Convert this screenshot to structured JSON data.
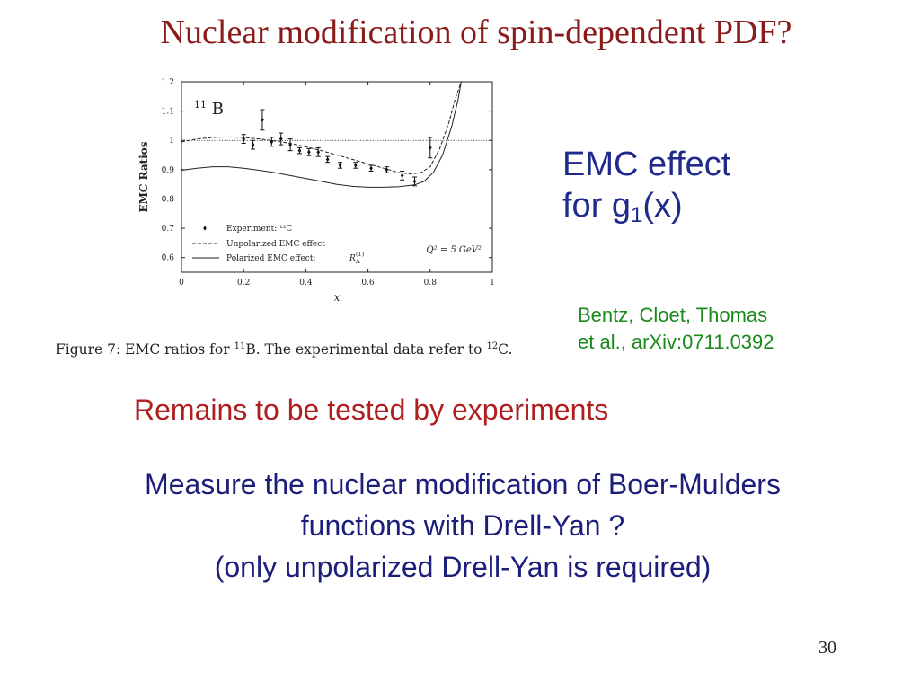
{
  "slide": {
    "title": "Nuclear modification of spin-dependent PDF?",
    "emc_line1": "EMC effect",
    "emc_line2_prefix": "for g",
    "emc_line2_sub": "1",
    "emc_line2_suffix": "(x)",
    "citation_line1": "Bentz, Cloet, Thomas",
    "citation_line2": "et al., arXiv:0711.0392",
    "remains": "Remains to be tested by experiments",
    "measure_line1": "Measure the nuclear modification of Boer-Mulders",
    "measure_line2": "functions with Drell-Yan ?",
    "measure_line3": "(only unpolarized Drell-Yan is required)",
    "page_number": "30"
  },
  "figure": {
    "caption_prefix": "Figure 7:  EMC ratios for ",
    "caption_b_mass": "11",
    "caption_mid": "B. The experimental data refer to ",
    "caption_c_mass": "12",
    "caption_suffix": "C."
  },
  "chart_data": {
    "type": "line",
    "nucleus_mass": "11",
    "nucleus_symbol": "B",
    "xlabel": "x",
    "ylabel": "EMC Ratios",
    "xlim": [
      0,
      1
    ],
    "ylim": [
      0.55,
      1.2
    ],
    "x_ticks": [
      "0",
      "0.2",
      "0.4",
      "0.6",
      "0.8",
      "1"
    ],
    "y_ticks": [
      "0.6",
      "0.7",
      "0.8",
      "0.9",
      "1",
      "1.1",
      "1.2"
    ],
    "reference_line": 1.0,
    "q2_label": "Q² = 5 GeV²",
    "series": [
      {
        "name": "Experiment: ¹²C",
        "style": "points",
        "x": [
          0.2,
          0.23,
          0.26,
          0.29,
          0.32,
          0.35,
          0.38,
          0.41,
          0.44,
          0.47,
          0.51,
          0.56,
          0.61,
          0.66,
          0.71,
          0.75,
          0.8
        ],
        "y": [
          1.005,
          0.985,
          1.07,
          0.995,
          1.005,
          0.985,
          0.965,
          0.96,
          0.96,
          0.935,
          0.915,
          0.915,
          0.905,
          0.9,
          0.88,
          0.86,
          0.975
        ],
        "err": [
          0.015,
          0.015,
          0.035,
          0.015,
          0.02,
          0.02,
          0.01,
          0.012,
          0.015,
          0.01,
          0.01,
          0.01,
          0.01,
          0.01,
          0.015,
          0.015,
          0.035
        ]
      },
      {
        "name": "Unpolarized EMC effect",
        "style": "dashed",
        "x": [
          0.0,
          0.05,
          0.1,
          0.15,
          0.2,
          0.25,
          0.3,
          0.35,
          0.4,
          0.45,
          0.5,
          0.55,
          0.6,
          0.65,
          0.7,
          0.74,
          0.77,
          0.8,
          0.83,
          0.86,
          0.88,
          0.9
        ],
        "y": [
          0.995,
          1.005,
          1.01,
          1.012,
          1.01,
          1.005,
          0.998,
          0.99,
          0.978,
          0.965,
          0.95,
          0.935,
          0.92,
          0.905,
          0.89,
          0.885,
          0.89,
          0.91,
          0.97,
          1.06,
          1.14,
          1.2
        ]
      },
      {
        "name": "Polarized EMC effect:",
        "name_symbol": "R",
        "name_sub": "A",
        "name_sup": "(1)",
        "style": "solid",
        "x": [
          0.0,
          0.05,
          0.1,
          0.15,
          0.2,
          0.25,
          0.3,
          0.35,
          0.4,
          0.45,
          0.5,
          0.55,
          0.6,
          0.65,
          0.7,
          0.75,
          0.78,
          0.81,
          0.84,
          0.87,
          0.89,
          0.9
        ],
        "y": [
          0.898,
          0.905,
          0.91,
          0.91,
          0.905,
          0.898,
          0.89,
          0.88,
          0.87,
          0.86,
          0.85,
          0.843,
          0.84,
          0.84,
          0.842,
          0.848,
          0.86,
          0.89,
          0.95,
          1.05,
          1.14,
          1.2
        ]
      }
    ]
  }
}
